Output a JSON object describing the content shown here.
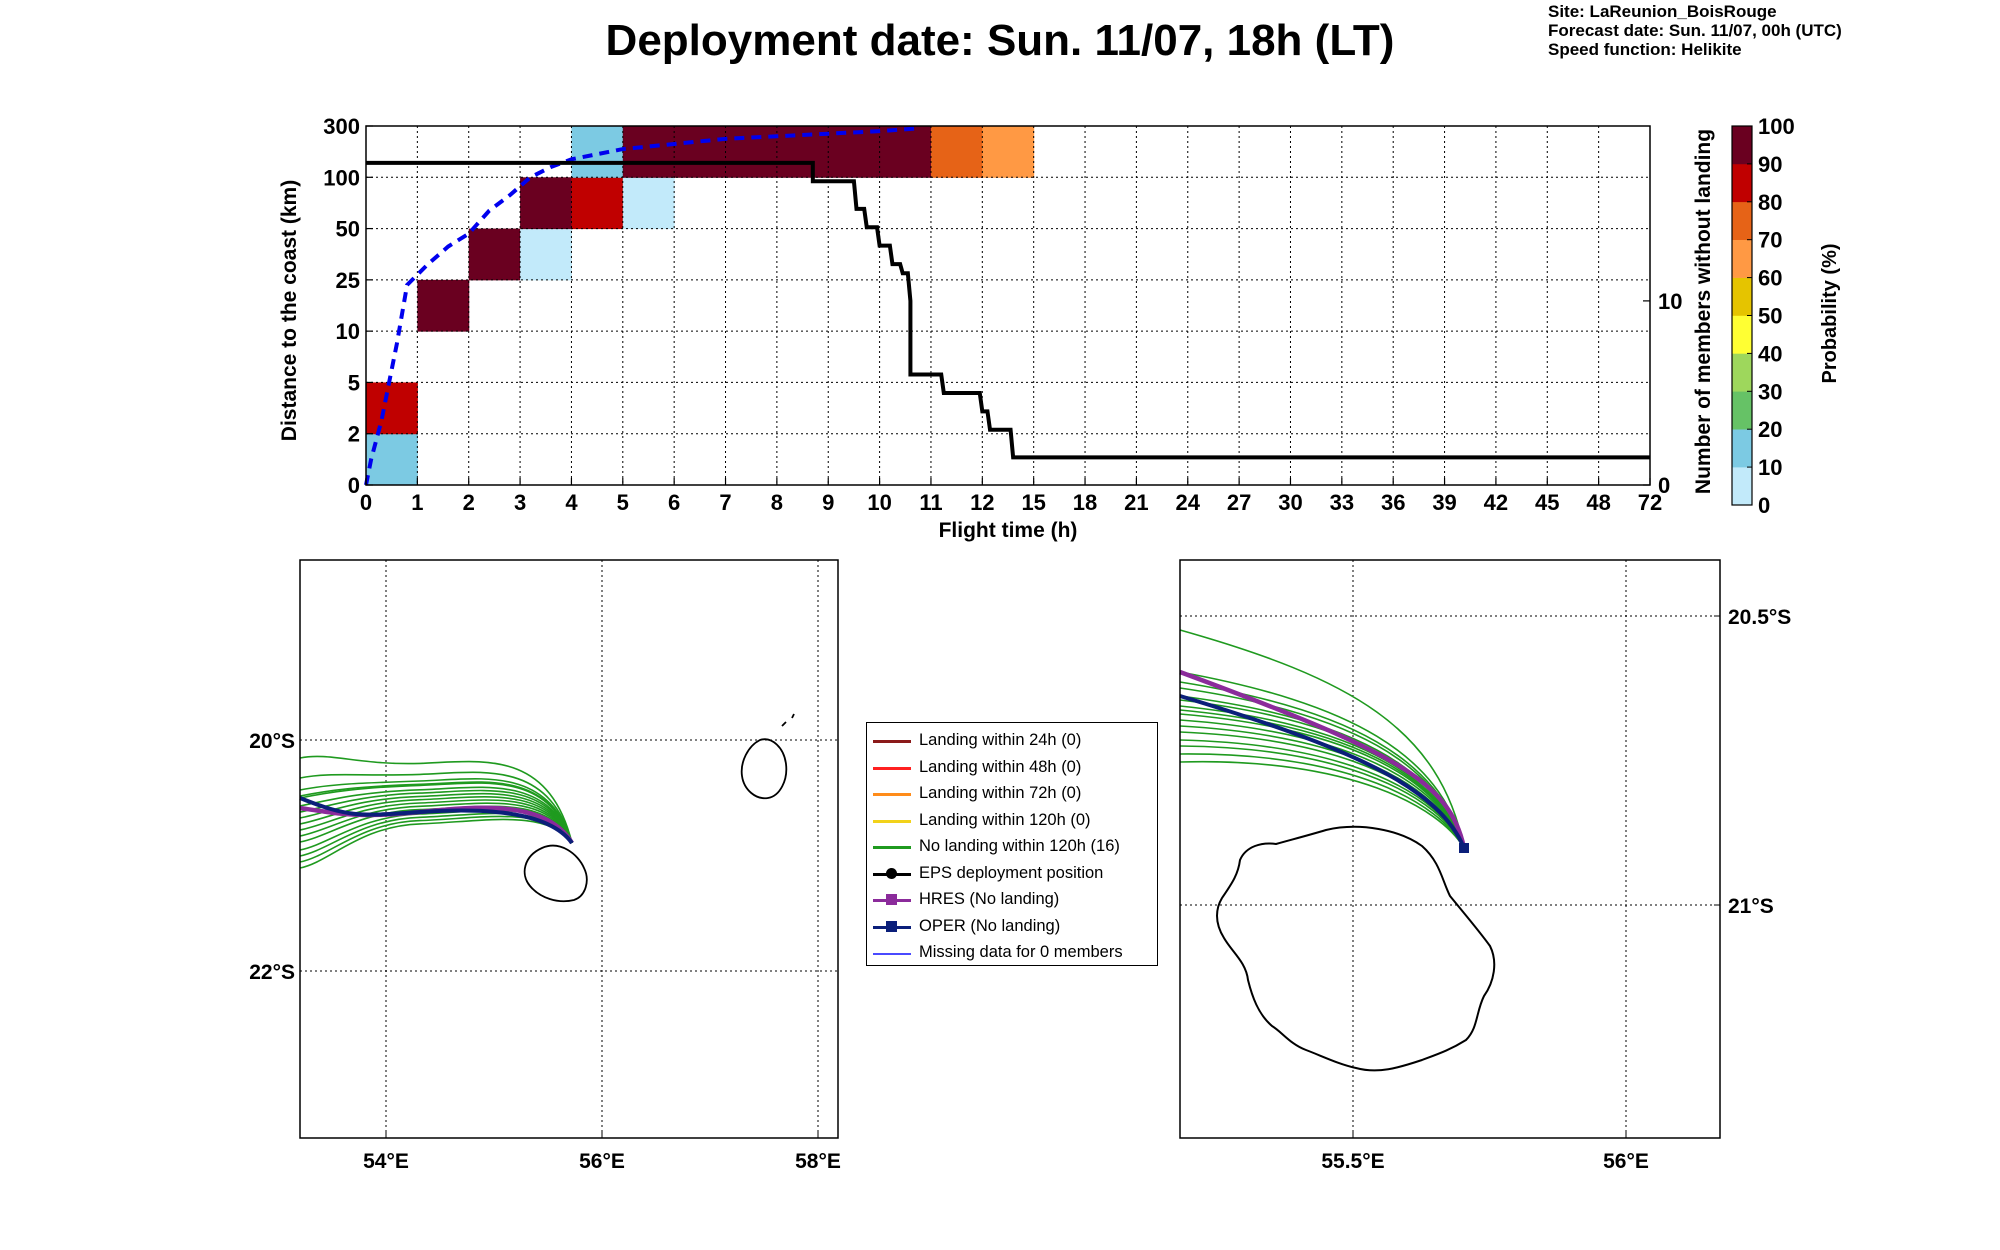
{
  "title": "Deployment date: Sun. 11/07, 18h (LT)",
  "meta": {
    "site": "Site: LaReunion_BoisRouge",
    "forecast": "Forecast date: Sun. 11/07, 00h (UTC)",
    "speed": "Speed function: Helikite"
  },
  "colors": {
    "bins": [
      "#c2eafa",
      "#7ccae3",
      "#66c266",
      "#9ed75c",
      "#ffff33",
      "#e5c400",
      "#ff9944",
      "#e66317",
      "#c00000",
      "#6a0020"
    ],
    "track_green": "#1f9a1f",
    "hres": "#8b2b9b",
    "oper": "#0b1f7a",
    "mean_line": "#0000ee"
  },
  "chart_data": [
    {
      "type": "heatmap",
      "xlabel": "Flight time (h)",
      "ylabel": "Distance to the coast (km)",
      "ylabel_right": "Number of members without landing",
      "colorbar_label": "Probability (%)",
      "x_ticks": [
        "0",
        "1",
        "2",
        "3",
        "4",
        "5",
        "6",
        "7",
        "8",
        "9",
        "10",
        "11",
        "12",
        "15",
        "18",
        "21",
        "24",
        "27",
        "30",
        "33",
        "36",
        "39",
        "42",
        "45",
        "48",
        "72"
      ],
      "y_ticks": [
        "0",
        "2",
        "5",
        "10",
        "25",
        "50",
        "100",
        "300"
      ],
      "right_ticks": [
        {
          "label": "0",
          "v": 0
        },
        {
          "label": "10",
          "v": 10
        }
      ],
      "colorbar_ticks": [
        "0",
        "10",
        "20",
        "30",
        "40",
        "50",
        "60",
        "70",
        "80",
        "90",
        "100"
      ],
      "cells": [
        {
          "x": 0,
          "y": 0,
          "p": 10
        },
        {
          "x": 0,
          "y": 1,
          "p": 85
        },
        {
          "x": 1,
          "y": 3,
          "p": 95
        },
        {
          "x": 2,
          "y": 4,
          "p": 95
        },
        {
          "x": 3,
          "y": 4,
          "p": 5
        },
        {
          "x": 3,
          "y": 5,
          "p": 95
        },
        {
          "x": 4,
          "y": 5,
          "p": 85
        },
        {
          "x": 4,
          "y": 6,
          "p": 15
        },
        {
          "x": 5,
          "y": 5,
          "p": 5
        },
        {
          "x": 5,
          "y": 6,
          "p": 95
        },
        {
          "x": 6,
          "y": 6,
          "p": 95
        },
        {
          "x": 7,
          "y": 6,
          "p": 95
        },
        {
          "x": 8,
          "y": 6,
          "p": 95
        },
        {
          "x": 9,
          "y": 6,
          "p": 95
        },
        {
          "x": 10,
          "y": 6,
          "p": 95
        },
        {
          "x": 11,
          "y": 6,
          "p": 75
        },
        {
          "x": 12,
          "y": 6,
          "p": 65
        }
      ],
      "members_without_landing": [
        [
          0,
          17.5
        ],
        [
          8.7,
          17.5
        ],
        [
          8.7,
          16.5
        ],
        [
          9.5,
          16.5
        ],
        [
          9.55,
          15
        ],
        [
          9.7,
          15
        ],
        [
          9.75,
          14
        ],
        [
          9.95,
          14
        ],
        [
          10,
          13
        ],
        [
          10.2,
          13
        ],
        [
          10.25,
          12
        ],
        [
          10.4,
          12
        ],
        [
          10.45,
          11.5
        ],
        [
          10.55,
          11.5
        ],
        [
          10.6,
          10
        ],
        [
          10.6,
          6
        ],
        [
          11.2,
          6
        ],
        [
          11.25,
          5
        ],
        [
          11.95,
          5
        ],
        [
          12,
          4
        ],
        [
          12.1,
          4
        ],
        [
          12.15,
          3
        ],
        [
          12.55,
          3
        ],
        [
          12.6,
          1.5
        ],
        [
          25,
          1.5
        ]
      ],
      "mean_distance": [
        [
          0,
          0
        ],
        [
          0.1,
          1.0
        ],
        [
          0.3,
          2.5
        ],
        [
          0.6,
          5.5
        ],
        [
          0.8,
          7.8
        ],
        [
          1.2,
          8.6
        ],
        [
          1.6,
          9.3
        ],
        [
          2,
          9.8
        ],
        [
          2.4,
          10.7
        ],
        [
          2.8,
          11.3
        ],
        [
          3.2,
          12.0
        ],
        [
          3.6,
          12.4
        ],
        [
          4,
          12.7
        ],
        [
          4.5,
          12.9
        ],
        [
          5,
          13.1
        ],
        [
          6,
          13.3
        ],
        [
          7,
          13.5
        ],
        [
          8,
          13.6
        ],
        [
          9,
          13.7
        ],
        [
          10,
          13.8
        ],
        [
          10.7,
          13.9
        ]
      ]
    },
    {
      "type": "map",
      "x_ticks": [
        "54°E",
        "56°E",
        "58°E"
      ],
      "y_ticks": [
        "20°S",
        "22°S"
      ]
    },
    {
      "type": "map",
      "x_ticks": [
        "55.5°E",
        "56°E"
      ],
      "y_ticks": [
        "20.5°S",
        "21°S"
      ]
    }
  ],
  "legend": [
    {
      "label": "Landing within 24h (0)",
      "color": "#8b1a1a",
      "marker": "none"
    },
    {
      "label": "Landing within 48h (0)",
      "color": "#ff2020",
      "marker": "none"
    },
    {
      "label": "Landing within 72h (0)",
      "color": "#ff8c1a",
      "marker": "none"
    },
    {
      "label": "Landing within 120h (0)",
      "color": "#f2d21a",
      "marker": "none"
    },
    {
      "label": "No landing within 120h (16)",
      "color": "#1f9a1f",
      "marker": "none"
    },
    {
      "label": "EPS deployment position",
      "color": "#000000",
      "marker": "dot"
    },
    {
      "label": "HRES (No landing)",
      "color": "#8b2b9b",
      "marker": "square"
    },
    {
      "label": "OPER (No landing)",
      "color": "#0b1f7a",
      "marker": "square"
    },
    {
      "label": "Missing data for 0 members",
      "color": "#4a4aff",
      "marker": "thin"
    }
  ]
}
